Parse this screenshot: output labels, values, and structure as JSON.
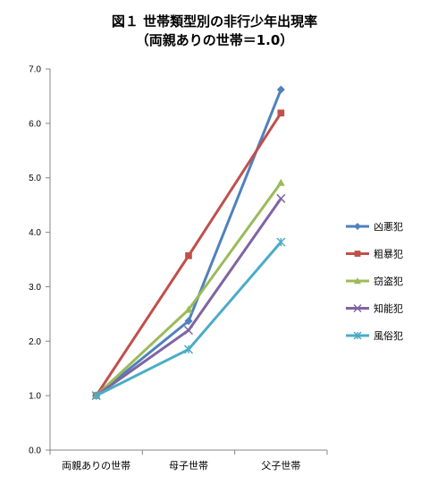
{
  "chart_data": {
    "type": "line",
    "title": "図１ 世帯類型別の非行少年出現率",
    "subtitle": "（両親ありの世帯＝1.0）",
    "categories": [
      "両親ありの世帯",
      "母子世帯",
      "父子世帯"
    ],
    "ylim": [
      0,
      7
    ],
    "yticks": [
      "0.0",
      "1.0",
      "2.0",
      "3.0",
      "4.0",
      "5.0",
      "6.0",
      "7.0"
    ],
    "grid": false,
    "legend_position": "right",
    "series": [
      {
        "name": "凶悪犯",
        "color": "#4F81BD",
        "marker": "diamond",
        "values": [
          1.0,
          2.37,
          6.62
        ]
      },
      {
        "name": "粗暴犯",
        "color": "#C0504D",
        "marker": "square",
        "values": [
          1.0,
          3.57,
          6.19
        ]
      },
      {
        "name": "窃盗犯",
        "color": "#9BBB59",
        "marker": "triangle",
        "values": [
          1.0,
          2.58,
          4.91
        ]
      },
      {
        "name": "知能犯",
        "color": "#8064A2",
        "marker": "x",
        "values": [
          1.0,
          2.2,
          4.62
        ]
      },
      {
        "name": "風俗犯",
        "color": "#4BACC6",
        "marker": "star",
        "values": [
          1.0,
          1.85,
          3.82
        ]
      }
    ]
  }
}
